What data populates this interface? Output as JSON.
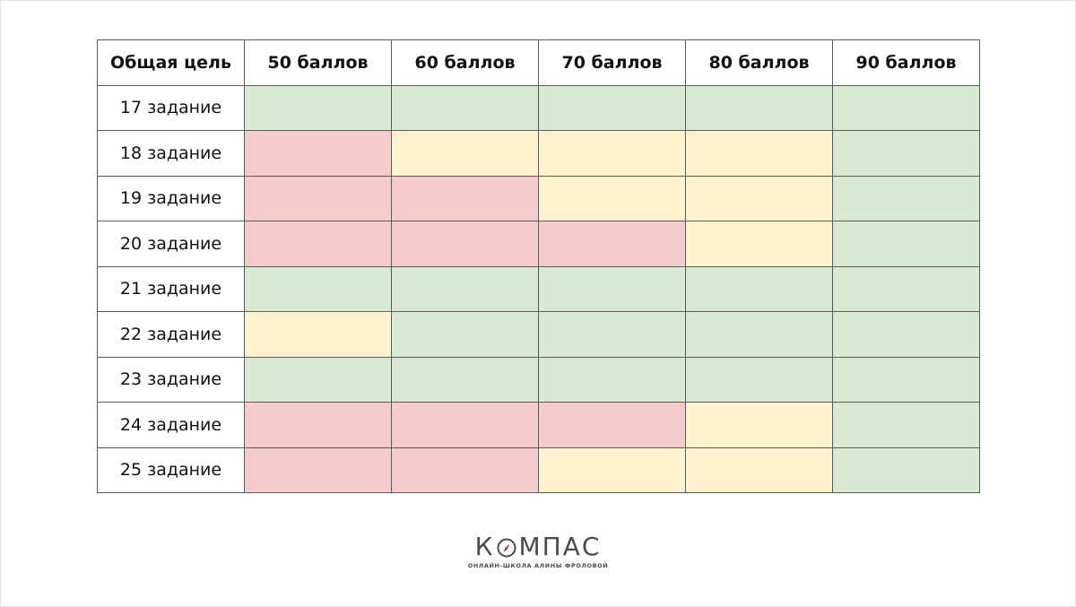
{
  "header": {
    "corner": "Общая цель",
    "columns": [
      "50 баллов",
      "60 баллов",
      "70 баллов",
      "80 баллов",
      "90 баллов"
    ]
  },
  "rows": [
    {
      "label": "17 задание",
      "levels": [
        "green",
        "green",
        "green",
        "green",
        "green"
      ]
    },
    {
      "label": "18 задание",
      "levels": [
        "red",
        "yellow",
        "yellow",
        "yellow",
        "green"
      ]
    },
    {
      "label": "19 задание",
      "levels": [
        "red",
        "red",
        "yellow",
        "yellow",
        "green"
      ]
    },
    {
      "label": "20 задание",
      "levels": [
        "red",
        "red",
        "red",
        "yellow",
        "green"
      ]
    },
    {
      "label": "21 задание",
      "levels": [
        "green",
        "green",
        "green",
        "green",
        "green"
      ]
    },
    {
      "label": "22 задание",
      "levels": [
        "yellow",
        "green",
        "green",
        "green",
        "green"
      ]
    },
    {
      "label": "23 задание",
      "levels": [
        "green",
        "green",
        "green",
        "green",
        "green"
      ]
    },
    {
      "label": "24 задание",
      "levels": [
        "red",
        "red",
        "red",
        "yellow",
        "green"
      ]
    },
    {
      "label": "25 задание",
      "levels": [
        "red",
        "red",
        "yellow",
        "yellow",
        "green"
      ]
    }
  ],
  "colors": {
    "green": "#d9ead3",
    "yellow": "#fff2cc",
    "red": "#f4cccc",
    "border": "#5a5a5a",
    "logo": "#4a4a4a",
    "logo_accent": "#d9534f"
  },
  "logo": {
    "wordmark_start": "К",
    "wordmark_end": "МПАС",
    "icon": "compass-icon",
    "subtitle": "ОНЛАЙН-ШКОЛА АЛИНЫ ФРОЛОВОЙ"
  }
}
